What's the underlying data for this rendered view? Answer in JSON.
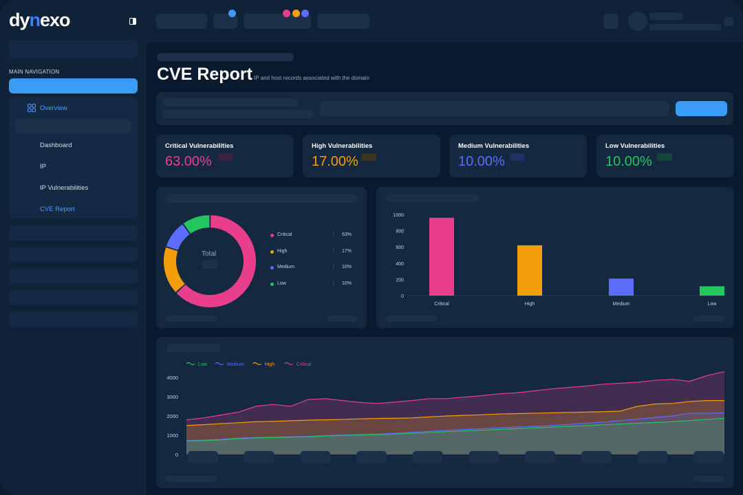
{
  "brand": {
    "logo_prefix": "dy",
    "logo_accent": "n",
    "logo_suffix": "exo"
  },
  "sidebar": {
    "nav_heading": "MAIN NAVIGATION",
    "overview_label": "Overview",
    "items": [
      {
        "label": "Dashboard"
      },
      {
        "label": "IP"
      },
      {
        "label": "IP Vulnerabilities"
      },
      {
        "label": "CVE Report"
      }
    ]
  },
  "page": {
    "title": "CVE Report",
    "subtitle": "IP and host records associated with the domain"
  },
  "stats": [
    {
      "label": "Critical Vulnerabilities",
      "value": "63.00%",
      "color": "#e83e8c"
    },
    {
      "label": "High Vulnerabilities",
      "value": "17.00%",
      "color": "#f59e0b"
    },
    {
      "label": "Medium Vulnerabilities",
      "value": "10.00%",
      "color": "#5b6cff"
    },
    {
      "label": "Low Vulnerabilities",
      "value": "10.00%",
      "color": "#22c55e"
    }
  ],
  "donut": {
    "center_label": "Total",
    "legend": [
      {
        "name": "Critical",
        "pct": "63%",
        "color": "#e83e8c"
      },
      {
        "name": "High",
        "pct": "17%",
        "color": "#f59e0b"
      },
      {
        "name": "Medium",
        "pct": "10%",
        "color": "#5b6cff"
      },
      {
        "name": "Low",
        "pct": "10%",
        "color": "#22c55e"
      }
    ]
  },
  "chart_data": [
    {
      "type": "pie",
      "labels": [
        "Critical",
        "High",
        "Medium",
        "Low"
      ],
      "values": [
        63,
        17,
        10,
        10
      ],
      "colors": [
        "#e83e8c",
        "#f59e0b",
        "#5b6cff",
        "#22c55e"
      ]
    },
    {
      "type": "bar",
      "categories": [
        "Critical",
        "High",
        "Medium",
        "Low"
      ],
      "values": [
        960,
        620,
        210,
        115
      ],
      "colors": [
        "#e83e8c",
        "#f59e0b",
        "#5b6cff",
        "#22c55e"
      ],
      "yticks": [
        "0",
        "200",
        "400",
        "600",
        "800",
        "1000"
      ],
      "ylim": [
        0,
        1000
      ]
    },
    {
      "type": "area",
      "series": [
        {
          "name": "Low",
          "color": "#22c55e",
          "values": [
            700,
            720,
            760,
            820,
            860,
            880,
            900,
            920,
            960,
            990,
            1010,
            1030,
            1060,
            1100,
            1140,
            1180,
            1220,
            1260,
            1300,
            1340,
            1380,
            1420,
            1460,
            1500,
            1540,
            1580,
            1620,
            1660,
            1700,
            1760,
            1820,
            1880
          ]
        },
        {
          "name": "Medium",
          "color": "#5b6cff",
          "values": [
            720,
            740,
            780,
            850,
            880,
            900,
            920,
            940,
            980,
            1010,
            1030,
            1050,
            1100,
            1150,
            1200,
            1250,
            1300,
            1340,
            1380,
            1420,
            1460,
            1500,
            1560,
            1620,
            1680,
            1760,
            1840,
            1920,
            2000,
            2140,
            2140,
            2160
          ]
        },
        {
          "name": "High",
          "color": "#f59e0b",
          "values": [
            1500,
            1550,
            1600,
            1650,
            1700,
            1720,
            1750,
            1780,
            1800,
            1820,
            1850,
            1870,
            1880,
            1900,
            1950,
            2000,
            2030,
            2060,
            2100,
            2120,
            2140,
            2160,
            2180,
            2200,
            2220,
            2250,
            2500,
            2620,
            2650,
            2750,
            2800,
            2800
          ]
        },
        {
          "name": "Critical",
          "color": "#e83e8c",
          "values": [
            1800,
            1900,
            2050,
            2200,
            2500,
            2600,
            2500,
            2850,
            2900,
            2800,
            2700,
            2650,
            2720,
            2800,
            2900,
            2900,
            2980,
            3050,
            3150,
            3200,
            3300,
            3400,
            3480,
            3550,
            3650,
            3700,
            3750,
            3850,
            3900,
            3800,
            4100,
            4300
          ]
        }
      ],
      "yticks": [
        "0",
        "1000",
        "2000",
        "3000",
        "4000"
      ],
      "ylim": [
        0,
        4500
      ]
    }
  ]
}
